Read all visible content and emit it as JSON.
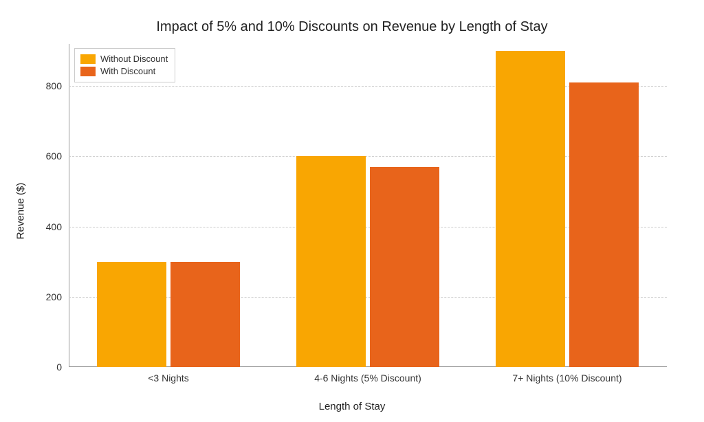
{
  "chart": {
    "type": "grouped-bar",
    "title": "Impact of 5% and 10% Discounts on Revenue by Length of Stay",
    "title_fontsize": 20,
    "xlabel": "Length of Stay",
    "ylabel": "Revenue ($)",
    "label_fontsize": 15,
    "tick_fontsize": 14,
    "background_color": "#ffffff",
    "grid_color": "#cccccc",
    "axis_line_color": "#999999",
    "ylim": [
      0,
      920
    ],
    "yticks": [
      0,
      200,
      400,
      600,
      800
    ],
    "categories": [
      "<3 Nights",
      "4-6 Nights (5% Discount)",
      "7+ Nights (10% Discount)"
    ],
    "series": [
      {
        "name": "Without Discount",
        "color": "#f9a602",
        "values": [
          300,
          600,
          900
        ]
      },
      {
        "name": "With Discount",
        "color": "#e8641b",
        "values": [
          300,
          570,
          810
        ]
      }
    ],
    "bar_width": 0.35,
    "group_gap": 0.02,
    "legend_position": "upper-left"
  }
}
